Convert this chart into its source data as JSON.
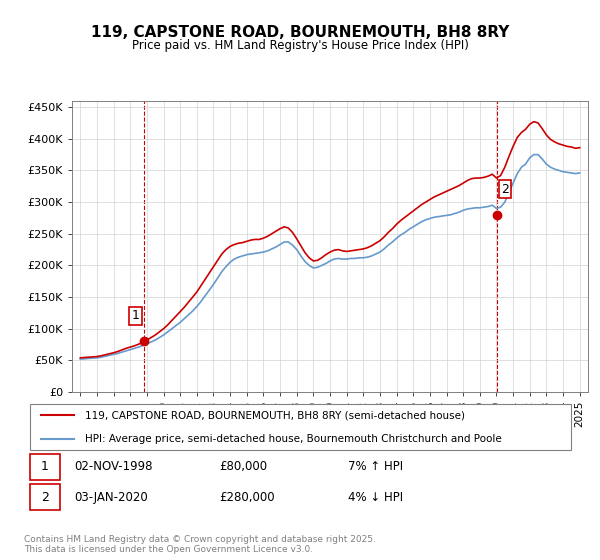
{
  "title": "119, CAPSTONE ROAD, BOURNEMOUTH, BH8 8RY",
  "subtitle": "Price paid vs. HM Land Registry's House Price Index (HPI)",
  "legend_line1": "119, CAPSTONE ROAD, BOURNEMOUTH, BH8 8RY (semi-detached house)",
  "legend_line2": "HPI: Average price, semi-detached house, Bournemouth Christchurch and Poole",
  "transaction1_label": "1",
  "transaction1_date": "02-NOV-1998",
  "transaction1_price": "£80,000",
  "transaction1_hpi": "7% ↑ HPI",
  "transaction2_label": "2",
  "transaction2_date": "03-JAN-2020",
  "transaction2_price": "£280,000",
  "transaction2_hpi": "4% ↓ HPI",
  "footer": "Contains HM Land Registry data © Crown copyright and database right 2025.\nThis data is licensed under the Open Government Licence v3.0.",
  "hpi_color": "#6699cc",
  "price_color": "#cc0000",
  "marker1_x": 1998.84,
  "marker1_y": 80000,
  "marker2_x": 2020.01,
  "marker2_y": 280000,
  "ylim": [
    0,
    460000
  ],
  "xlim": [
    1994.5,
    2025.5
  ],
  "yticks": [
    0,
    50000,
    100000,
    150000,
    200000,
    250000,
    300000,
    350000,
    400000,
    450000
  ],
  "xticks": [
    1995,
    1996,
    1997,
    1998,
    1999,
    2000,
    2001,
    2002,
    2003,
    2004,
    2005,
    2006,
    2007,
    2008,
    2009,
    2010,
    2011,
    2012,
    2013,
    2014,
    2015,
    2016,
    2017,
    2018,
    2019,
    2020,
    2021,
    2022,
    2023,
    2024,
    2025
  ],
  "hpi_years": [
    1995,
    1995.25,
    1995.5,
    1995.75,
    1996,
    1996.25,
    1996.5,
    1996.75,
    1997,
    1997.25,
    1997.5,
    1997.75,
    1998,
    1998.25,
    1998.5,
    1998.75,
    1999,
    1999.25,
    1999.5,
    1999.75,
    2000,
    2000.25,
    2000.5,
    2000.75,
    2001,
    2001.25,
    2001.5,
    2001.75,
    2002,
    2002.25,
    2002.5,
    2002.75,
    2003,
    2003.25,
    2003.5,
    2003.75,
    2004,
    2004.25,
    2004.5,
    2004.75,
    2005,
    2005.25,
    2005.5,
    2005.75,
    2006,
    2006.25,
    2006.5,
    2006.75,
    2007,
    2007.25,
    2007.5,
    2007.75,
    2008,
    2008.25,
    2008.5,
    2008.75,
    2009,
    2009.25,
    2009.5,
    2009.75,
    2010,
    2010.25,
    2010.5,
    2010.75,
    2011,
    2011.25,
    2011.5,
    2011.75,
    2012,
    2012.25,
    2012.5,
    2012.75,
    2013,
    2013.25,
    2013.5,
    2013.75,
    2014,
    2014.25,
    2014.5,
    2014.75,
    2015,
    2015.25,
    2015.5,
    2015.75,
    2016,
    2016.25,
    2016.5,
    2016.75,
    2017,
    2017.25,
    2017.5,
    2017.75,
    2018,
    2018.25,
    2018.5,
    2018.75,
    2019,
    2019.25,
    2019.5,
    2019.75,
    2020,
    2020.25,
    2020.5,
    2020.75,
    2021,
    2021.25,
    2021.5,
    2021.75,
    2022,
    2022.25,
    2022.5,
    2022.75,
    2023,
    2023.25,
    2023.5,
    2023.75,
    2024,
    2024.25,
    2024.5,
    2024.75,
    2025
  ],
  "hpi_values": [
    52000,
    52500,
    53000,
    53500,
    54000,
    55000,
    56500,
    58000,
    59500,
    61000,
    63000,
    65000,
    67000,
    69000,
    71000,
    73500,
    76000,
    79000,
    82000,
    86000,
    90000,
    95000,
    100000,
    105000,
    110000,
    116000,
    122000,
    128000,
    135000,
    143000,
    152000,
    161000,
    170000,
    180000,
    190000,
    198000,
    205000,
    210000,
    213000,
    215000,
    217000,
    218000,
    219000,
    220000,
    221000,
    223000,
    226000,
    229000,
    233000,
    237000,
    237000,
    232000,
    225000,
    215000,
    206000,
    200000,
    196000,
    197000,
    200000,
    203000,
    207000,
    210000,
    211000,
    210000,
    210000,
    211000,
    211000,
    212000,
    212000,
    213000,
    215000,
    218000,
    221000,
    226000,
    232000,
    237000,
    243000,
    248000,
    252000,
    257000,
    261000,
    265000,
    269000,
    272000,
    274000,
    276000,
    277000,
    278000,
    279000,
    280000,
    282000,
    284000,
    287000,
    289000,
    290000,
    291000,
    291000,
    292000,
    293000,
    295000,
    290000,
    292000,
    300000,
    315000,
    330000,
    345000,
    355000,
    360000,
    370000,
    375000,
    375000,
    368000,
    360000,
    355000,
    352000,
    350000,
    348000,
    347000,
    346000,
    345000,
    346000
  ],
  "price_years": [
    1995,
    1995.25,
    1995.5,
    1995.75,
    1996,
    1996.25,
    1996.5,
    1996.75,
    1997,
    1997.25,
    1997.5,
    1997.75,
    1998,
    1998.25,
    1998.5,
    1998.75,
    1999,
    1999.25,
    1999.5,
    1999.75,
    2000,
    2000.25,
    2000.5,
    2000.75,
    2001,
    2001.25,
    2001.5,
    2001.75,
    2002,
    2002.25,
    2002.5,
    2002.75,
    2003,
    2003.25,
    2003.5,
    2003.75,
    2004,
    2004.25,
    2004.5,
    2004.75,
    2005,
    2005.25,
    2005.5,
    2005.75,
    2006,
    2006.25,
    2006.5,
    2006.75,
    2007,
    2007.25,
    2007.5,
    2007.75,
    2008,
    2008.25,
    2008.5,
    2008.75,
    2009,
    2009.25,
    2009.5,
    2009.75,
    2010,
    2010.25,
    2010.5,
    2010.75,
    2011,
    2011.25,
    2011.5,
    2011.75,
    2012,
    2012.25,
    2012.5,
    2012.75,
    2013,
    2013.25,
    2013.5,
    2013.75,
    2014,
    2014.25,
    2014.5,
    2014.75,
    2015,
    2015.25,
    2015.5,
    2015.75,
    2016,
    2016.25,
    2016.5,
    2016.75,
    2017,
    2017.25,
    2017.5,
    2017.75,
    2018,
    2018.25,
    2018.5,
    2018.75,
    2019,
    2019.25,
    2019.5,
    2019.75,
    2020,
    2020.25,
    2020.5,
    2020.75,
    2021,
    2021.25,
    2021.5,
    2021.75,
    2022,
    2022.25,
    2022.5,
    2022.75,
    2023,
    2023.25,
    2023.5,
    2023.75,
    2024,
    2024.25,
    2024.5,
    2024.75,
    2025
  ],
  "price_values": [
    54000,
    54500,
    55000,
    55500,
    56000,
    57200,
    58800,
    60400,
    62000,
    64000,
    66500,
    69000,
    71000,
    73000,
    75500,
    78000,
    82000,
    86000,
    90000,
    95000,
    100000,
    106000,
    113000,
    120000,
    127000,
    134000,
    142000,
    150000,
    158000,
    168000,
    178000,
    188000,
    198000,
    208000,
    218000,
    225000,
    230000,
    233000,
    235000,
    236000,
    238000,
    240000,
    241000,
    241000,
    243000,
    246000,
    250000,
    254000,
    258000,
    261000,
    259000,
    252000,
    242000,
    231000,
    220000,
    212000,
    207000,
    208000,
    212000,
    217000,
    221000,
    224000,
    225000,
    223000,
    222000,
    223000,
    224000,
    225000,
    226000,
    228000,
    231000,
    235000,
    239000,
    245000,
    252000,
    258000,
    265000,
    271000,
    276000,
    281000,
    286000,
    291000,
    296000,
    300000,
    304000,
    308000,
    311000,
    314000,
    317000,
    320000,
    323000,
    326000,
    330000,
    334000,
    337000,
    338000,
    338000,
    339000,
    341000,
    344000,
    338000,
    342000,
    355000,
    372000,
    388000,
    402000,
    410000,
    415000,
    423000,
    427000,
    425000,
    416000,
    406000,
    399000,
    395000,
    392000,
    390000,
    388000,
    387000,
    385000,
    386000
  ]
}
